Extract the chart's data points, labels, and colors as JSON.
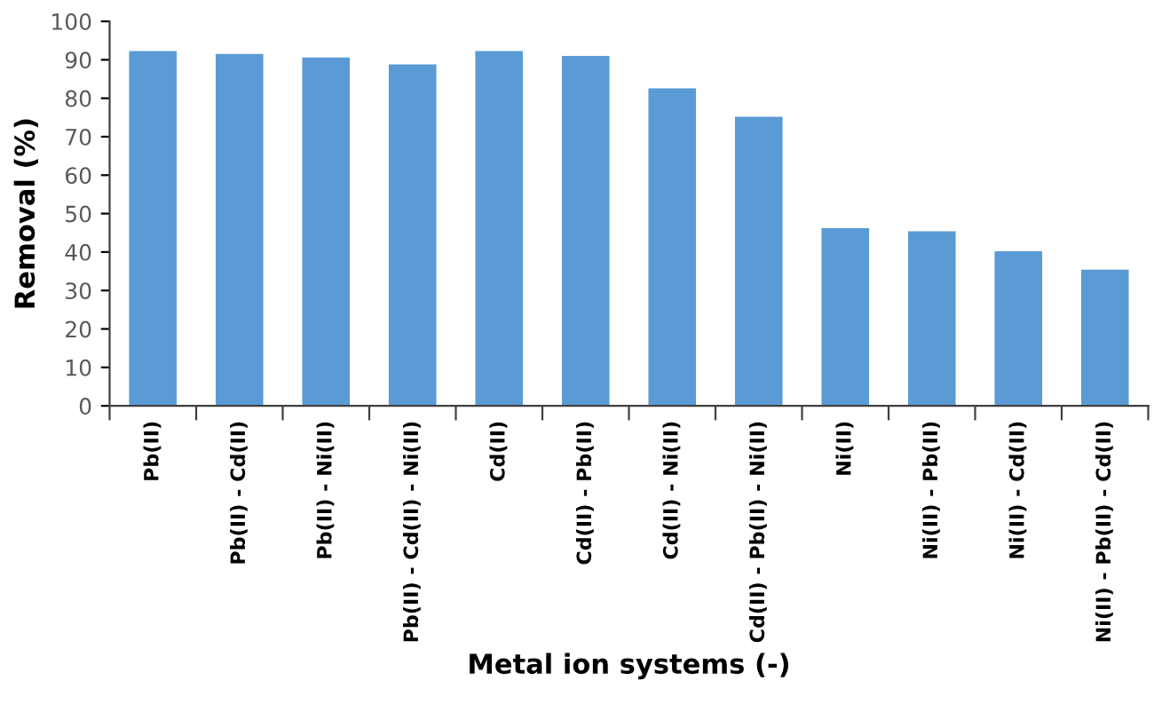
{
  "chart_data": {
    "type": "bar",
    "xlabel": "Metal ion systems (-)",
    "ylabel": "Removal (%)",
    "categories": [
      "Pb(II)",
      "Pb(II) - Cd(II)",
      "Pb(II) - Ni(II)",
      "Pb(II) - Cd(II) - Ni(II)",
      "Cd(II)",
      "Cd(II) - Pb(II)",
      "Cd(II) - Ni(II)",
      "Cd(II) - Pb(II) - Ni(II)",
      "Ni(II)",
      "Ni(II) - Pb(II)",
      "Ni(II) - Cd(II)",
      "Ni(II) - Pb(II) - Cd(II)"
    ],
    "values": [
      92.3,
      91.5,
      90.6,
      88.8,
      92.3,
      91.0,
      82.6,
      75.2,
      46.2,
      45.4,
      40.2,
      35.4
    ],
    "color": "#5b9bd5",
    "ylim": [
      0,
      100
    ],
    "yticks": [
      0,
      10,
      20,
      30,
      40,
      50,
      60,
      70,
      80,
      90,
      100
    ],
    "grid": false,
    "legend": false
  }
}
